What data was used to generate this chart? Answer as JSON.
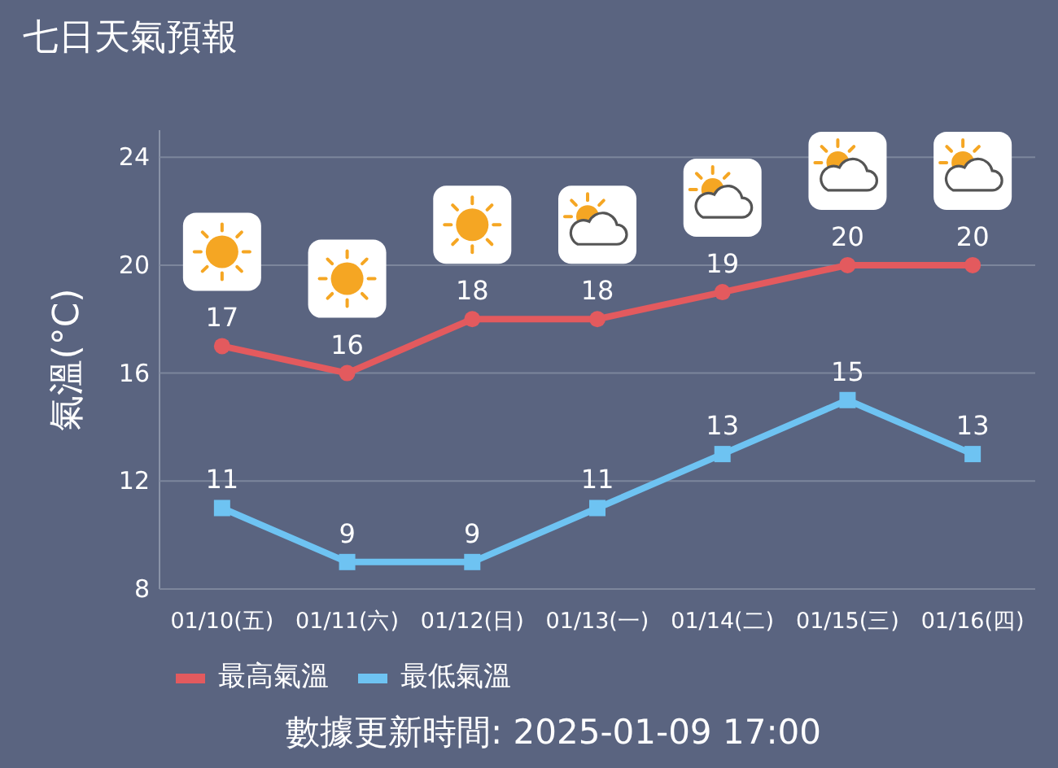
{
  "chart_data": {
    "type": "line",
    "title": "七日天氣預報",
    "ylabel": "氣溫(°C)",
    "categories": [
      "01/10(五)",
      "01/11(六)",
      "01/12(日)",
      "01/13(一)",
      "01/14(二)",
      "01/15(三)",
      "01/16(四)"
    ],
    "series": [
      {
        "name": "最高氣溫",
        "color": "#e35a5e",
        "marker": "circle",
        "values": [
          17,
          16,
          18,
          18,
          19,
          20,
          20
        ]
      },
      {
        "name": "最低氣溫",
        "color": "#6ec3f2",
        "marker": "square",
        "values": [
          11,
          9,
          9,
          11,
          13,
          15,
          13
        ]
      }
    ],
    "ylim": [
      8,
      25
    ],
    "yticks": [
      8,
      12,
      16,
      20,
      24
    ],
    "grid": "y",
    "legend": "bottom left",
    "data_labels": true,
    "annotations": [
      "數據更新時間: 2025-01-09 17:00"
    ]
  }
}
